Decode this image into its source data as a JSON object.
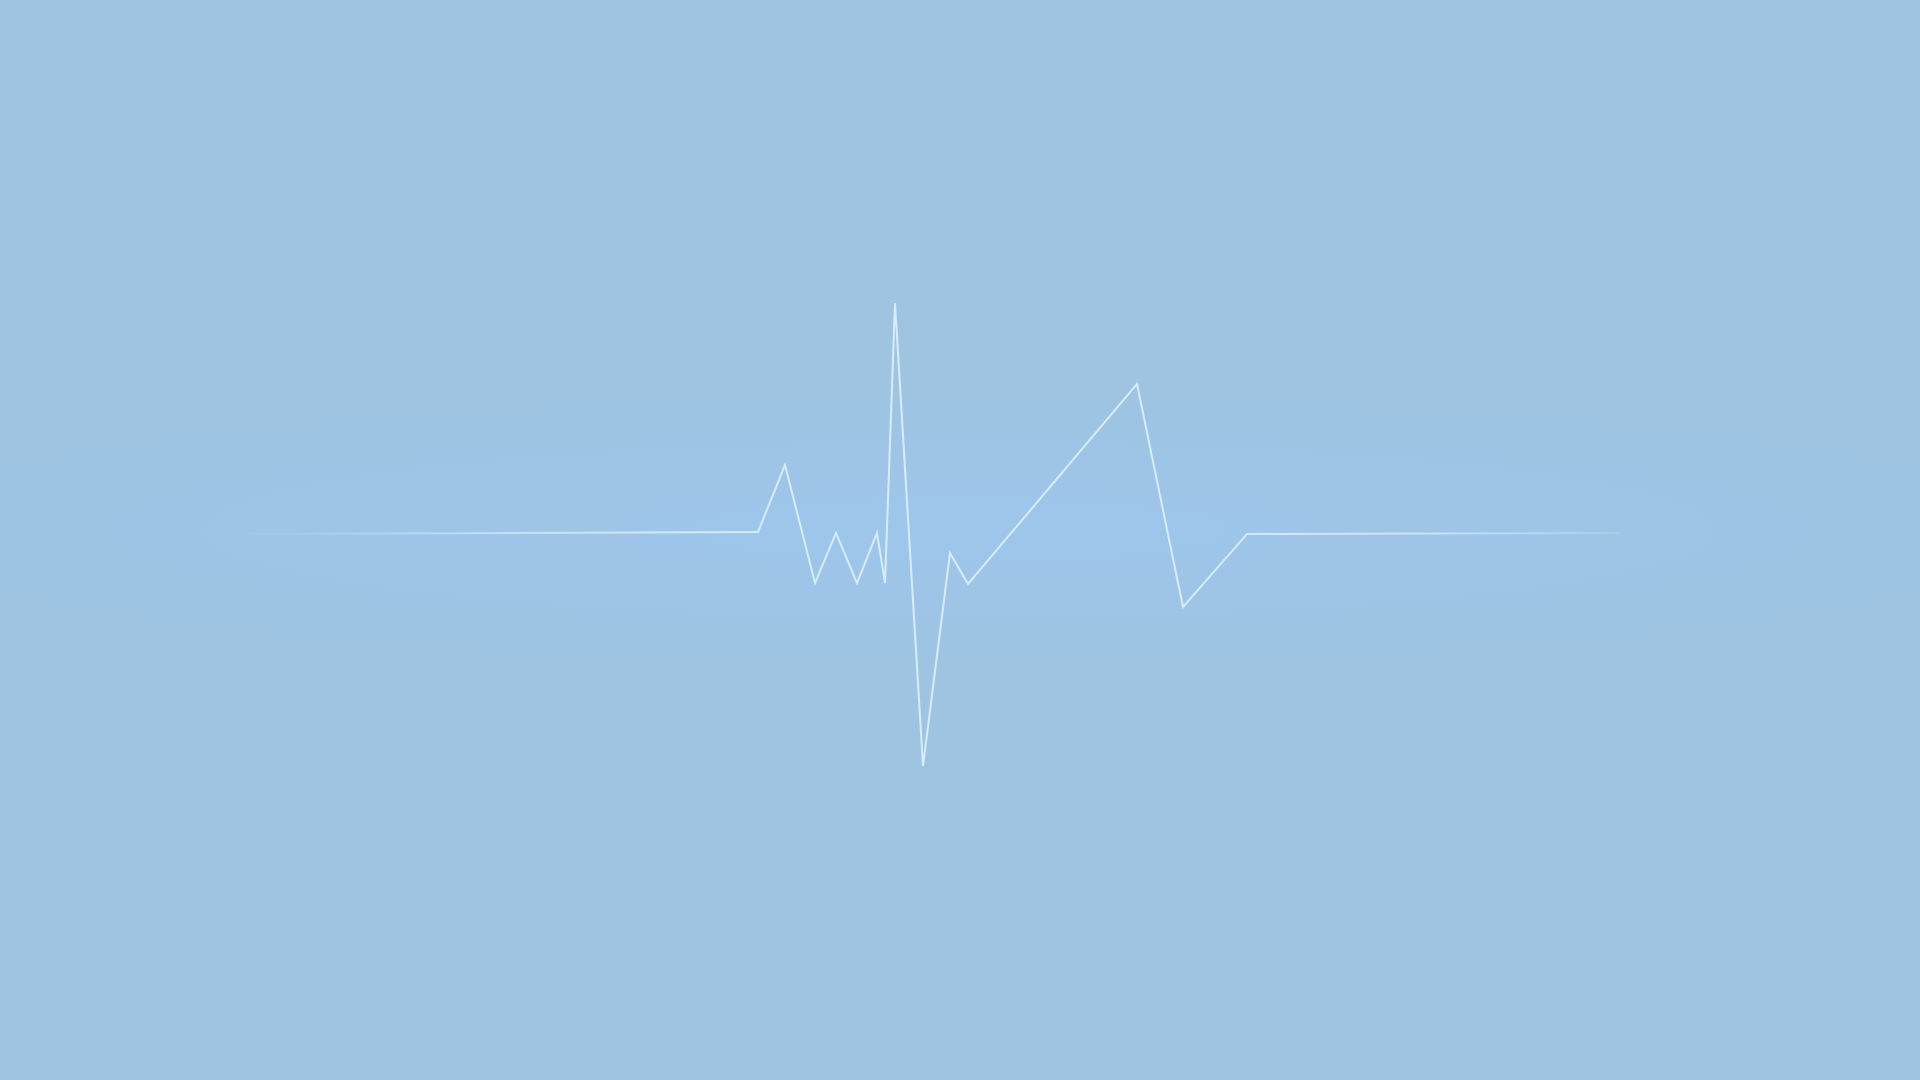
{
  "screen": {
    "background_color": "#9ec4e2",
    "glow_color": "#9ec6ec"
  },
  "heartbeat": {
    "icon": "heartbeat-pulse-line",
    "line_color": "#d6ecf8"
  }
}
